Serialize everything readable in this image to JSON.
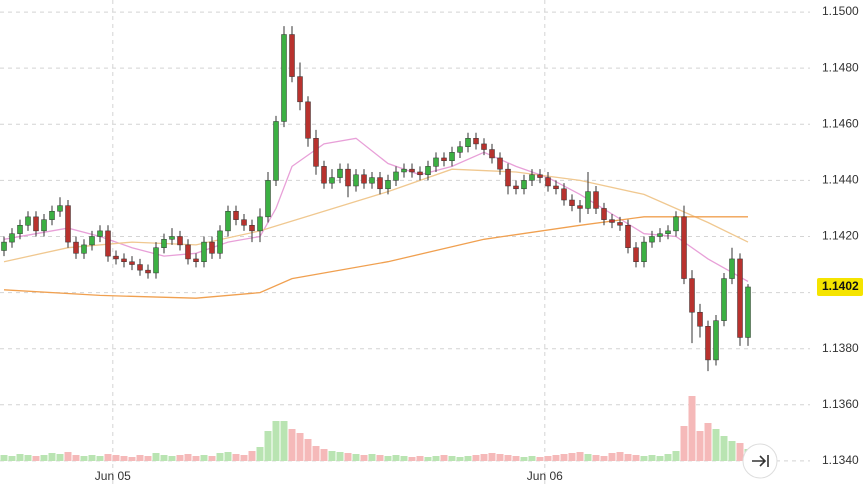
{
  "chart_data": {
    "type": "candlestick",
    "open": [
      1.1415,
      1.1418,
      1.1421,
      1.1424,
      1.1427,
      1.1422,
      1.1426,
      1.1429,
      1.1431,
      1.1418,
      1.1414,
      1.1417,
      1.142,
      1.1422,
      1.1413,
      1.1412,
      1.1411,
      1.141,
      1.1408,
      1.1407,
      1.1416,
      1.1419,
      1.142,
      1.1417,
      1.1412,
      1.1411,
      1.1418,
      1.1414,
      1.1422,
      1.1429,
      1.1426,
      1.1424,
      1.1422,
      1.1427,
      1.144,
      1.1461,
      1.1492,
      1.1477,
      1.1468,
      1.1455,
      1.1445,
      1.1439,
      1.1441,
      1.1444,
      1.1438,
      1.1442,
      1.1439,
      1.1441,
      1.1437,
      1.144,
      1.1443,
      1.1444,
      1.1443,
      1.1442,
      1.1445,
      1.1448,
      1.1447,
      1.145,
      1.1452,
      1.1455,
      1.1453,
      1.1451,
      1.1448,
      1.1444,
      1.1438,
      1.1437,
      1.144,
      1.1442,
      1.1441,
      1.1438,
      1.1437,
      1.1433,
      1.1431,
      1.143,
      1.1436,
      1.143,
      1.1426,
      1.1425,
      1.1424,
      1.1416,
      1.1411,
      1.1418,
      1.142,
      1.1421,
      1.1422,
      1.1427,
      1.1405,
      1.1393,
      1.1388,
      1.1376,
      1.139,
      1.1405,
      1.1412,
      1.1384
    ],
    "high": [
      1.142,
      1.1423,
      1.1426,
      1.1429,
      1.1429,
      1.1428,
      1.1431,
      1.1434,
      1.1433,
      1.142,
      1.1419,
      1.1422,
      1.1424,
      1.1424,
      1.1415,
      1.1414,
      1.1413,
      1.1412,
      1.141,
      1.1418,
      1.1421,
      1.1423,
      1.1422,
      1.1419,
      1.1414,
      1.142,
      1.142,
      1.1424,
      1.1431,
      1.1431,
      1.1428,
      1.1426,
      1.143,
      1.1443,
      1.1463,
      1.1495,
      1.1495,
      1.1482,
      1.147,
      1.1458,
      1.1447,
      1.1444,
      1.1446,
      1.1446,
      1.1444,
      1.1444,
      1.1443,
      1.1443,
      1.1442,
      1.1445,
      1.1446,
      1.1446,
      1.1445,
      1.1447,
      1.145,
      1.145,
      1.1452,
      1.1454,
      1.1457,
      1.1457,
      1.1455,
      1.1453,
      1.145,
      1.1446,
      1.144,
      1.1442,
      1.1444,
      1.1444,
      1.1443,
      1.144,
      1.1439,
      1.1435,
      1.1433,
      1.1443,
      1.1438,
      1.1432,
      1.1428,
      1.1427,
      1.1426,
      1.1418,
      1.142,
      1.1422,
      1.1423,
      1.1424,
      1.1429,
      1.1431,
      1.1408,
      1.1396,
      1.139,
      1.1392,
      1.1407,
      1.1416,
      1.1414,
      1.1403
    ],
    "low": [
      1.1413,
      1.1416,
      1.1419,
      1.1422,
      1.142,
      1.142,
      1.1424,
      1.1427,
      1.1416,
      1.1412,
      1.1412,
      1.1415,
      1.1418,
      1.1411,
      1.141,
      1.1409,
      1.1408,
      1.1406,
      1.1405,
      1.1405,
      1.1414,
      1.1417,
      1.1415,
      1.141,
      1.1409,
      1.1409,
      1.1412,
      1.1412,
      1.142,
      1.1424,
      1.1422,
      1.1418,
      1.1418,
      1.1425,
      1.1438,
      1.1459,
      1.1475,
      1.1465,
      1.1452,
      1.1442,
      1.1437,
      1.1437,
      1.1439,
      1.1434,
      1.1436,
      1.1437,
      1.1437,
      1.1435,
      1.1435,
      1.1438,
      1.1441,
      1.1441,
      1.144,
      1.144,
      1.1443,
      1.1445,
      1.1445,
      1.1448,
      1.145,
      1.1451,
      1.1449,
      1.1446,
      1.1442,
      1.1435,
      1.1435,
      1.1435,
      1.1438,
      1.1439,
      1.1436,
      1.1435,
      1.1431,
      1.1429,
      1.1425,
      1.1428,
      1.1428,
      1.1424,
      1.1423,
      1.1422,
      1.1414,
      1.1409,
      1.1409,
      1.1416,
      1.1418,
      1.1419,
      1.142,
      1.1403,
      1.1382,
      1.1384,
      1.1372,
      1.1374,
      1.1388,
      1.1403,
      1.1381,
      1.1381
    ],
    "close": [
      1.1418,
      1.1421,
      1.1424,
      1.1427,
      1.1422,
      1.1426,
      1.1429,
      1.1431,
      1.1418,
      1.1414,
      1.1417,
      1.142,
      1.1422,
      1.1413,
      1.1412,
      1.1411,
      1.141,
      1.1408,
      1.1407,
      1.1416,
      1.1419,
      1.142,
      1.1417,
      1.1412,
      1.1411,
      1.1418,
      1.1414,
      1.1422,
      1.1429,
      1.1426,
      1.1424,
      1.1422,
      1.1427,
      1.144,
      1.1461,
      1.1492,
      1.1477,
      1.1468,
      1.1455,
      1.1445,
      1.1439,
      1.1441,
      1.1444,
      1.1438,
      1.1442,
      1.1439,
      1.1441,
      1.1437,
      1.144,
      1.1443,
      1.1444,
      1.1443,
      1.1442,
      1.1445,
      1.1448,
      1.1447,
      1.145,
      1.1452,
      1.1455,
      1.1453,
      1.1451,
      1.1448,
      1.1444,
      1.1438,
      1.1437,
      1.144,
      1.1442,
      1.1441,
      1.1438,
      1.1437,
      1.1433,
      1.1431,
      1.143,
      1.1436,
      1.143,
      1.1426,
      1.1425,
      1.1424,
      1.1416,
      1.1411,
      1.1418,
      1.142,
      1.1421,
      1.1422,
      1.1427,
      1.1405,
      1.1393,
      1.1388,
      1.1376,
      1.139,
      1.1405,
      1.1412,
      1.1384,
      1.1402
    ],
    "volume": [
      6,
      5,
      7,
      6,
      5,
      6,
      8,
      7,
      9,
      6,
      5,
      6,
      5,
      7,
      6,
      5,
      4,
      6,
      5,
      8,
      6,
      5,
      6,
      7,
      5,
      6,
      5,
      8,
      9,
      7,
      6,
      10,
      14,
      30,
      40,
      40,
      32,
      28,
      22,
      15,
      12,
      10,
      9,
      8,
      7,
      6,
      7,
      6,
      5,
      6,
      5,
      4,
      5,
      4,
      5,
      6,
      5,
      4,
      5,
      6,
      7,
      8,
      7,
      6,
      5,
      4,
      5,
      4,
      5,
      6,
      7,
      8,
      9,
      7,
      6,
      5,
      8,
      9,
      7,
      6,
      5,
      6,
      5,
      7,
      10,
      35,
      65,
      30,
      38,
      32,
      25,
      20,
      18,
      12
    ],
    "series": [
      {
        "color": "#e8a0d8",
        "x": [
          0,
          4,
          8,
          12,
          16,
          20,
          24,
          28,
          32,
          34,
          36,
          40,
          44,
          48,
          52,
          56,
          60,
          64,
          68,
          72,
          76,
          80,
          84,
          88,
          93
        ],
        "values": [
          1.1419,
          1.1421,
          1.1423,
          1.142,
          1.1416,
          1.1413,
          1.1414,
          1.1418,
          1.142,
          1.143,
          1.1445,
          1.1453,
          1.1455,
          1.1446,
          1.1442,
          1.1445,
          1.145,
          1.1445,
          1.1441,
          1.1435,
          1.1428,
          1.1421,
          1.142,
          1.1412,
          1.1404
        ]
      },
      {
        "color": "#f0c890",
        "x": [
          0,
          8,
          16,
          24,
          32,
          40,
          48,
          56,
          64,
          72,
          80,
          88,
          93
        ],
        "values": [
          1.1411,
          1.1416,
          1.1418,
          1.1417,
          1.1422,
          1.1429,
          1.1436,
          1.1444,
          1.1443,
          1.144,
          1.1435,
          1.1425,
          1.1418
        ]
      },
      {
        "color": "#f0a050",
        "x": [
          0,
          12,
          24,
          32,
          36,
          48,
          60,
          72,
          80,
          93
        ],
        "values": [
          1.1401,
          1.1399,
          1.1398,
          1.14,
          1.1405,
          1.1411,
          1.1419,
          1.1424,
          1.1427,
          1.1427
        ]
      }
    ],
    "up_color": "#3cb043",
    "down_color": "#b8322e",
    "up_volume_color": "#b9e4b2",
    "down_volume_color": "#f5b9b9",
    "xlim": [
      -0.5,
      100.75
    ],
    "xticks": [
      {
        "value": 13.6,
        "label": "Jun 05"
      },
      {
        "value": 67.6,
        "label": "Jun 06"
      }
    ],
    "ylim": [
      1.13307,
      1.15043
    ],
    "yticks": [
      {
        "value": 1.134,
        "label": "1.1340"
      },
      {
        "value": 1.136,
        "label": "1.1360"
      },
      {
        "value": 1.138,
        "label": "1.1380"
      },
      {
        "value": 1.14,
        "label": "1.1400"
      },
      {
        "value": 1.142,
        "label": "1.1420"
      },
      {
        "value": 1.144,
        "label": "1.1440"
      },
      {
        "value": 1.146,
        "label": "1.1460"
      },
      {
        "value": 1.148,
        "label": "1.1480"
      },
      {
        "value": 1.15,
        "label": "1.1500"
      }
    ],
    "last_price": {
      "value": 1.1402,
      "label": "1.1402"
    },
    "grid": true
  }
}
